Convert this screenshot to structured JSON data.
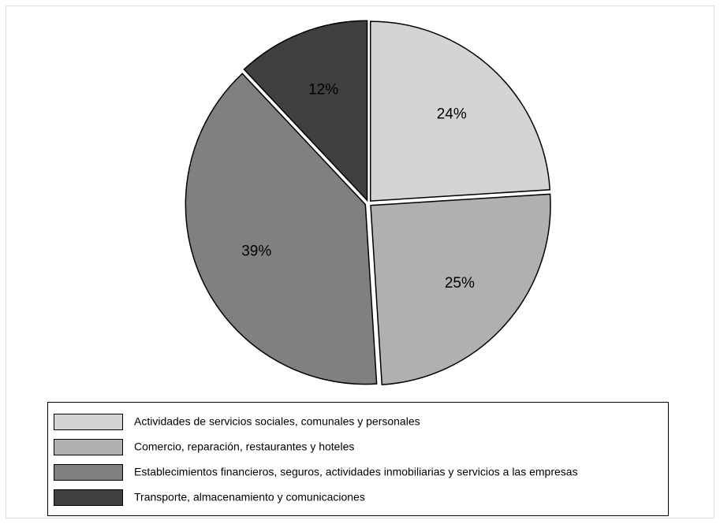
{
  "chart_data": {
    "type": "pie",
    "categories": [
      "Actividades de servicios sociales, comunales y personales",
      "Comercio, reparación, restaurantes y hoteles",
      "Establecimientos financieros, seguros, actividades inmobiliarias y servicios a las empresas",
      "Transporte, almacenamiento y comunicaciones"
    ],
    "values": [
      24,
      25,
      39,
      12
    ],
    "value_labels": [
      "24%",
      "25%",
      "39%",
      "12%"
    ],
    "colors": [
      "#d4d4d4",
      "#b0b0b0",
      "#808080",
      "#404040"
    ],
    "legend": "bottom"
  }
}
